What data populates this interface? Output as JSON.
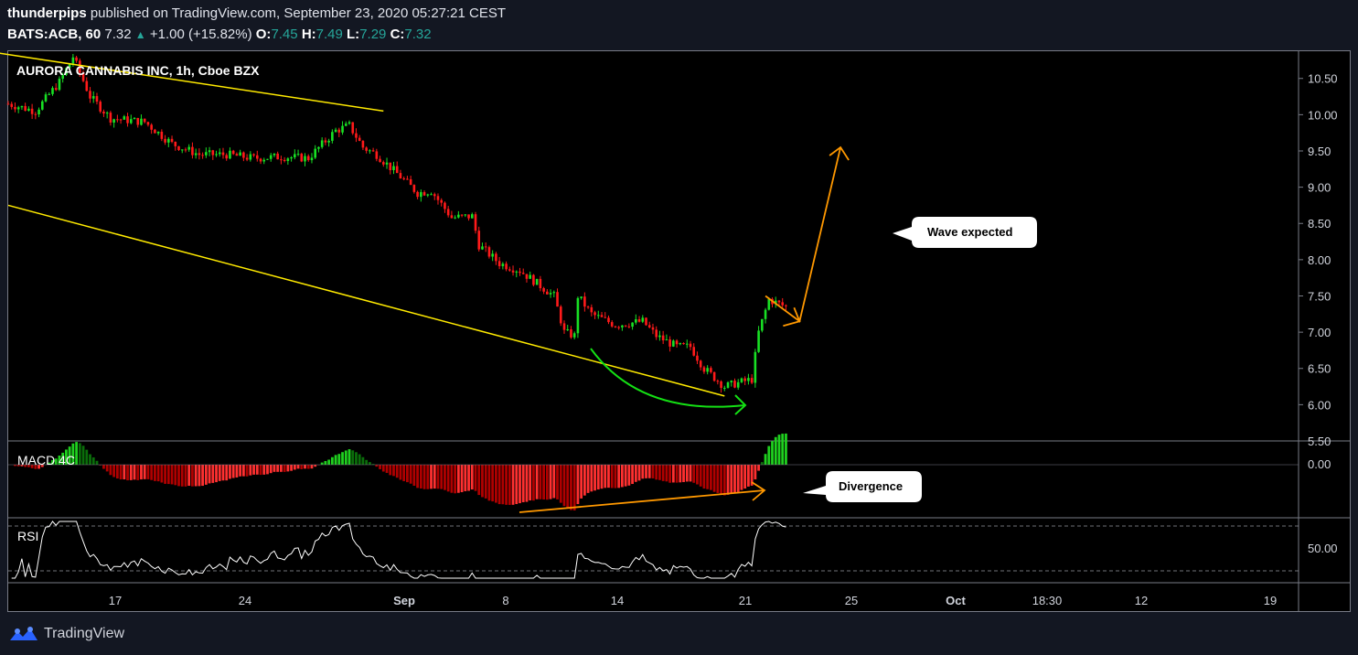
{
  "header": {
    "user": "thunderpips",
    "published": "published on TradingView.com, September 23, 2020 05:27:21 CEST",
    "symbol": "BATS:ACB, 60",
    "last": "7.32",
    "change": "+1.00 (+15.82%)",
    "o_label": "O:",
    "o": "7.45",
    "h_label": "H:",
    "h": "7.49",
    "l_label": "L:",
    "l": "7.29",
    "c_label": "C:",
    "c": "7.32"
  },
  "footer": {
    "brand": "TradingView",
    "icon": "tradingview-logo-icon"
  },
  "colors": {
    "up": "#26a69a",
    "candle_up": "#18e024",
    "candle_down": "#ff1a1a",
    "trendline": "#ffea00",
    "arrow": "#ff9800",
    "curve": "#14e014"
  },
  "chart_data": [
    {
      "type": "candlestick",
      "title": "AURORA CANNABIS INC, 1h, Cboe BZX",
      "ylim": [
        5.5,
        10.85
      ],
      "y_ticks": [
        "10.50",
        "10.00",
        "9.50",
        "9.00",
        "8.50",
        "8.00",
        "7.50",
        "7.00",
        "6.50",
        "6.00",
        "5.50"
      ],
      "x_ticks": [
        "17",
        "24",
        "Sep",
        "8",
        "14",
        "21",
        "25",
        "Oct",
        "18:30",
        "12",
        "19"
      ],
      "close_path": [
        [
          0,
          10.15
        ],
        [
          8,
          10.05
        ],
        [
          15,
          10.45
        ],
        [
          19,
          10.8
        ],
        [
          24,
          10.25
        ],
        [
          30,
          9.95
        ],
        [
          40,
          9.9
        ],
        [
          48,
          9.6
        ],
        [
          56,
          9.45
        ],
        [
          64,
          9.45
        ],
        [
          72,
          9.4
        ],
        [
          80,
          9.42
        ],
        [
          88,
          9.4
        ],
        [
          96,
          9.78
        ],
        [
          100,
          9.85
        ],
        [
          104,
          9.55
        ],
        [
          108,
          9.45
        ],
        [
          116,
          9.1
        ],
        [
          120,
          8.92
        ],
        [
          124,
          8.95
        ],
        [
          130,
          8.58
        ],
        [
          136,
          8.6
        ],
        [
          138,
          8.2
        ],
        [
          144,
          7.95
        ],
        [
          150,
          7.85
        ],
        [
          160,
          7.5
        ],
        [
          163,
          7.0
        ],
        [
          166,
          6.95
        ],
        [
          167,
          7.5
        ],
        [
          171,
          7.25
        ],
        [
          178,
          7.1
        ],
        [
          186,
          7.15
        ],
        [
          190,
          6.95
        ],
        [
          196,
          6.8
        ],
        [
          200,
          6.8
        ],
        [
          204,
          6.5
        ],
        [
          210,
          6.25
        ],
        [
          214,
          6.3
        ],
        [
          218,
          6.35
        ],
        [
          220,
          7.0
        ],
        [
          223,
          7.45
        ],
        [
          228,
          7.35
        ]
      ],
      "trend_upper": [
        [
          -10,
          10.9
        ],
        [
          110,
          10.05
        ]
      ],
      "trend_lower": [
        [
          -10,
          8.75
        ],
        [
          210,
          6.12
        ]
      ],
      "projection_arrow": [
        [
          222,
          7.5
        ],
        [
          232,
          7.15
        ],
        [
          244,
          9.55
        ]
      ],
      "annotation": "Wave expected"
    },
    {
      "type": "histogram",
      "name": "MACD 4C",
      "zero_label": "0.00",
      "annotation": "Divergence"
    },
    {
      "type": "line",
      "name": "RSI",
      "level_label": "50.00"
    }
  ]
}
